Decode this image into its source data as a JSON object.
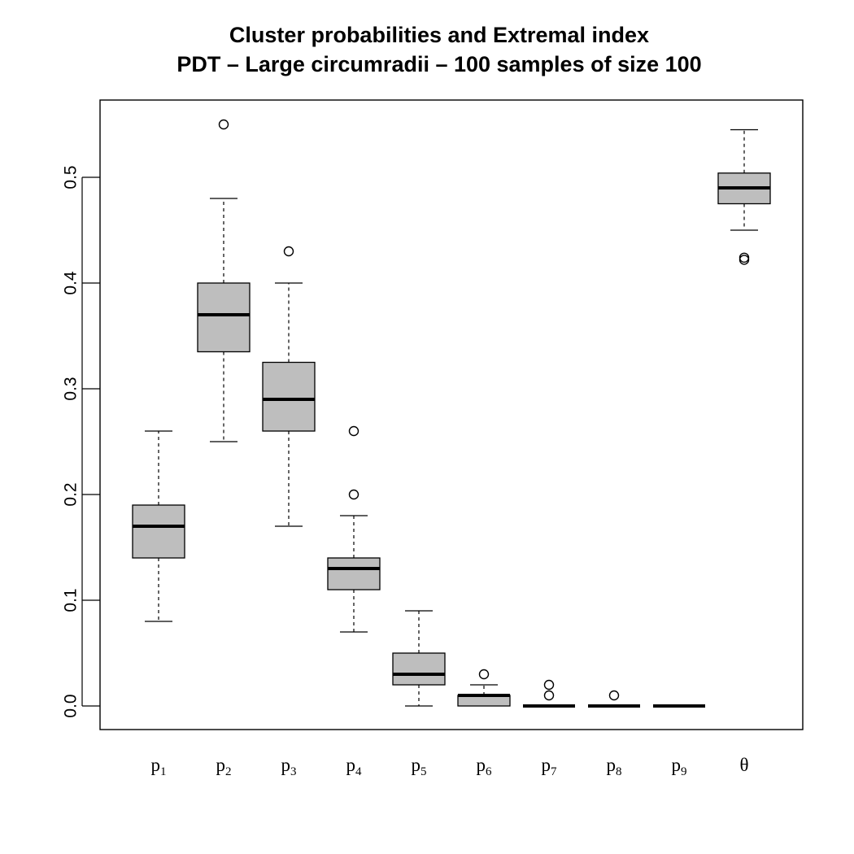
{
  "chart_data": {
    "type": "boxplot",
    "title": "Cluster probabilities and Extremal index",
    "subtitle": "PDT – Large circumradii – 100 samples of size 100",
    "xlabel": "",
    "ylabel": "",
    "ylim": [
      -0.022,
      0.572
    ],
    "y_ticks": [
      0.0,
      0.1,
      0.2,
      0.3,
      0.4,
      0.5
    ],
    "y_tick_labels": [
      "0.0",
      "0.1",
      "0.2",
      "0.3",
      "0.4",
      "0.5"
    ],
    "fill_color": "#bebebe",
    "grid": false,
    "boxes": [
      {
        "label": "p",
        "sub": "1",
        "whisker_low": 0.08,
        "q1": 0.14,
        "median": 0.17,
        "q3": 0.19,
        "whisker_high": 0.26,
        "outliers": []
      },
      {
        "label": "p",
        "sub": "2",
        "whisker_low": 0.25,
        "q1": 0.335,
        "median": 0.37,
        "q3": 0.4,
        "whisker_high": 0.48,
        "outliers": [
          0.55
        ]
      },
      {
        "label": "p",
        "sub": "3",
        "whisker_low": 0.17,
        "q1": 0.26,
        "median": 0.29,
        "q3": 0.325,
        "whisker_high": 0.4,
        "outliers": [
          0.43
        ]
      },
      {
        "label": "p",
        "sub": "4",
        "whisker_low": 0.07,
        "q1": 0.11,
        "median": 0.13,
        "q3": 0.14,
        "whisker_high": 0.18,
        "outliers": [
          0.2,
          0.26
        ]
      },
      {
        "label": "p",
        "sub": "5",
        "whisker_low": 0.0,
        "q1": 0.02,
        "median": 0.03,
        "q3": 0.05,
        "whisker_high": 0.09,
        "outliers": []
      },
      {
        "label": "p",
        "sub": "6",
        "whisker_low": 0.0,
        "q1": 0.0,
        "median": 0.01,
        "q3": 0.01,
        "whisker_high": 0.02,
        "outliers": [
          0.03
        ]
      },
      {
        "label": "p",
        "sub": "7",
        "whisker_low": 0.0,
        "q1": 0.0,
        "median": 0.0,
        "q3": 0.0,
        "whisker_high": 0.0,
        "outliers": [
          0.01,
          0.02
        ]
      },
      {
        "label": "p",
        "sub": "8",
        "whisker_low": 0.0,
        "q1": 0.0,
        "median": 0.0,
        "q3": 0.0,
        "whisker_high": 0.0,
        "outliers": [
          0.01
        ]
      },
      {
        "label": "p",
        "sub": "9",
        "whisker_low": 0.0,
        "q1": 0.0,
        "median": 0.0,
        "q3": 0.0,
        "whisker_high": 0.0,
        "outliers": []
      },
      {
        "label": "θ",
        "sub": "",
        "whisker_low": 0.45,
        "q1": 0.475,
        "median": 0.49,
        "q3": 0.504,
        "whisker_high": 0.545,
        "outliers": [
          0.422,
          0.424
        ]
      }
    ]
  }
}
